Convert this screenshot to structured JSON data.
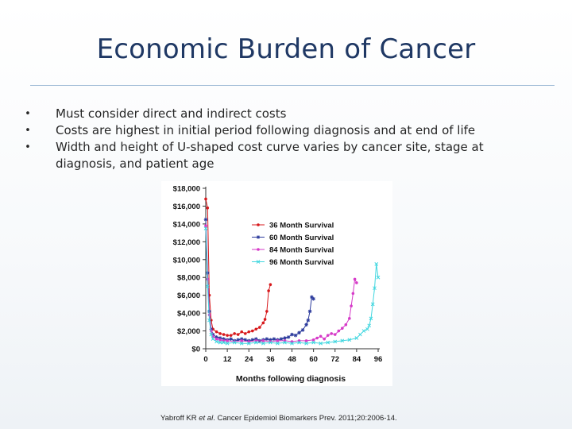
{
  "slide": {
    "title": "Economic Burden of Cancer",
    "bullets": [
      "Must consider direct and indirect costs",
      "Costs are highest in initial period following diagnosis and at end of life",
      "Width and height of U-shaped cost curve varies by cancer site, stage at diagnosis, and patient age"
    ],
    "bullet_glyph": "•",
    "citation": {
      "authors": "Yabroff KR ",
      "etal": "et al",
      "journal": ". Cancer Epidemiol Biomarkers Prev",
      "details": ". 2011;20:2006-14."
    }
  },
  "chart_data": {
    "type": "line",
    "xlabel": "Months following diagnosis",
    "ylabel": "",
    "xlim": [
      0,
      96
    ],
    "ylim": [
      0,
      18000
    ],
    "xticks": [
      0,
      12,
      24,
      36,
      48,
      60,
      72,
      84,
      96
    ],
    "yticks": [
      0,
      2000,
      4000,
      6000,
      8000,
      10000,
      12000,
      14000,
      16000,
      18000
    ],
    "ytick_labels": [
      "$0",
      "$2,000",
      "$4,000",
      "$6,000",
      "$8,000",
      "$10,000",
      "$12,000",
      "$14,000",
      "$16,000",
      "$18,000"
    ],
    "legend_position": "right",
    "series": [
      {
        "name": "36 Month Survival",
        "color": "#d7191c",
        "marker": "circle",
        "x": [
          0,
          1,
          2,
          3,
          4,
          6,
          8,
          10,
          12,
          14,
          16,
          18,
          20,
          22,
          24,
          26,
          28,
          30,
          32,
          33,
          34,
          35,
          36
        ],
        "y": [
          16800,
          15800,
          6000,
          3200,
          2200,
          1900,
          1700,
          1600,
          1500,
          1500,
          1700,
          1600,
          1900,
          1700,
          1900,
          2000,
          2200,
          2400,
          2900,
          3300,
          4200,
          6500,
          7200
        ]
      },
      {
        "name": "60 Month Survival",
        "color": "#2b3a9c",
        "marker": "star",
        "x": [
          0,
          1,
          2,
          3,
          4,
          6,
          8,
          10,
          12,
          14,
          16,
          18,
          20,
          22,
          24,
          26,
          28,
          30,
          32,
          34,
          36,
          38,
          40,
          42,
          44,
          46,
          48,
          50,
          52,
          54,
          56,
          57,
          58,
          59,
          60
        ],
        "y": [
          14500,
          8500,
          4200,
          2200,
          1600,
          1300,
          1200,
          1100,
          1000,
          1100,
          900,
          1000,
          1100,
          1000,
          900,
          1000,
          1100,
          900,
          1000,
          1100,
          1000,
          1100,
          1000,
          1100,
          1200,
          1300,
          1600,
          1500,
          1800,
          2100,
          2700,
          3200,
          4200,
          5800,
          5600
        ]
      },
      {
        "name": "84 Month Survival",
        "color": "#d63ac8",
        "marker": "circle",
        "x": [
          0,
          1,
          2,
          3,
          4,
          6,
          8,
          10,
          12,
          16,
          20,
          24,
          28,
          32,
          36,
          40,
          44,
          48,
          52,
          56,
          60,
          62,
          64,
          66,
          68,
          70,
          72,
          74,
          76,
          78,
          80,
          81,
          82,
          83,
          84
        ],
        "y": [
          13800,
          7800,
          3800,
          2000,
          1400,
          1100,
          1000,
          900,
          900,
          800,
          900,
          800,
          900,
          900,
          800,
          900,
          900,
          800,
          900,
          900,
          1000,
          1200,
          1400,
          1100,
          1500,
          1700,
          1600,
          2000,
          2300,
          2700,
          3400,
          4800,
          6200,
          7800,
          7400
        ]
      },
      {
        "name": "96 Month Survival",
        "color": "#3fd6df",
        "marker": "x",
        "x": [
          0,
          1,
          2,
          3,
          4,
          6,
          8,
          10,
          12,
          16,
          20,
          24,
          28,
          32,
          36,
          40,
          44,
          48,
          52,
          56,
          60,
          64,
          68,
          72,
          76,
          80,
          84,
          86,
          88,
          90,
          91,
          92,
          93,
          94,
          95,
          96
        ],
        "y": [
          13500,
          7000,
          3200,
          1600,
          1100,
          800,
          700,
          700,
          600,
          700,
          600,
          600,
          700,
          600,
          700,
          600,
          700,
          600,
          700,
          600,
          700,
          600,
          700,
          800,
          900,
          1000,
          1200,
          1600,
          2000,
          2200,
          2600,
          3400,
          5000,
          6800,
          9500,
          8000
        ]
      }
    ]
  }
}
